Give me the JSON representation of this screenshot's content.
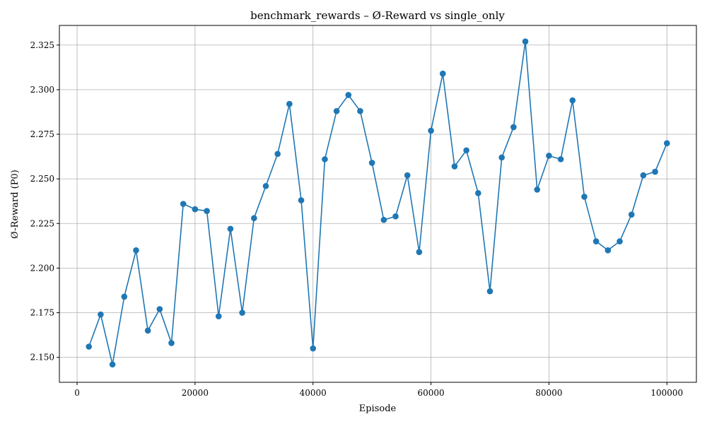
{
  "chart_data": {
    "type": "line",
    "title": "benchmark_rewards – Ø-Reward vs single_only",
    "xlabel": "Episode",
    "ylabel": "Ø-Reward (P0)",
    "xlim": [
      -3000,
      105000
    ],
    "ylim": [
      2.136,
      2.336
    ],
    "grid": true,
    "x_ticks": [
      0,
      20000,
      40000,
      60000,
      80000,
      100000
    ],
    "y_ticks": [
      2.15,
      2.175,
      2.2,
      2.225,
      2.25,
      2.275,
      2.3,
      2.325
    ],
    "x_tick_labels": [
      "0",
      "20000",
      "40000",
      "60000",
      "80000",
      "100000"
    ],
    "y_tick_labels": [
      "2.150",
      "2.175",
      "2.200",
      "2.225",
      "2.250",
      "2.275",
      "2.300",
      "2.325"
    ],
    "series": [
      {
        "color": "#1f77b4",
        "marker": "circle",
        "x": [
          2000,
          4000,
          6000,
          8000,
          10000,
          12000,
          14000,
          16000,
          18000,
          20000,
          22000,
          24000,
          26000,
          28000,
          30000,
          32000,
          34000,
          36000,
          38000,
          40000,
          42000,
          44000,
          46000,
          48000,
          50000,
          52000,
          54000,
          56000,
          58000,
          60000,
          62000,
          64000,
          66000,
          68000,
          70000,
          72000,
          74000,
          76000,
          78000,
          80000,
          82000,
          84000,
          86000,
          88000,
          90000,
          92000,
          94000,
          96000,
          98000,
          100000
        ],
        "values": [
          2.156,
          2.174,
          2.146,
          2.184,
          2.21,
          2.165,
          2.177,
          2.158,
          2.236,
          2.233,
          2.232,
          2.173,
          2.222,
          2.175,
          2.228,
          2.246,
          2.264,
          2.292,
          2.238,
          2.155,
          2.261,
          2.288,
          2.297,
          2.288,
          2.259,
          2.227,
          2.229,
          2.252,
          2.209,
          2.277,
          2.309,
          2.257,
          2.266,
          2.242,
          2.187,
          2.262,
          2.279,
          2.327,
          2.244,
          2.263,
          2.261,
          2.294,
          2.24,
          2.215,
          2.21,
          2.215,
          2.23,
          2.252,
          2.254,
          2.27
        ]
      }
    ]
  }
}
